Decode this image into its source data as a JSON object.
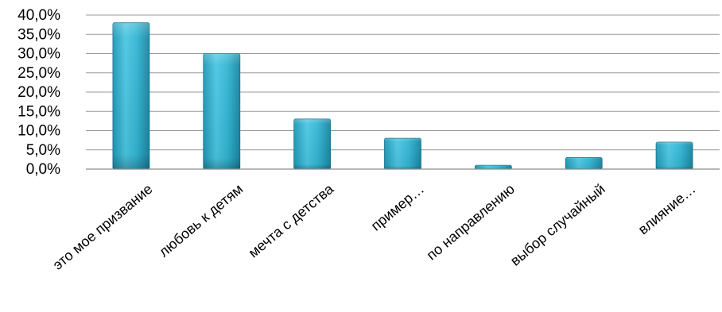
{
  "chart_data": {
    "type": "bar",
    "title": "",
    "xlabel": "",
    "ylabel": "",
    "categories": [
      "это мое призвание",
      "любовь к детям",
      "мечта с детства",
      "пример…",
      "по направлению",
      "выбор случайный",
      "влияние…"
    ],
    "values": [
      38.0,
      30.0,
      13.0,
      8.0,
      1.0,
      3.0,
      7.0
    ],
    "ylim": [
      0,
      40
    ],
    "y_ticks": [
      0,
      5,
      10,
      15,
      20,
      25,
      30,
      35,
      40
    ],
    "y_tick_labels": [
      "0,0%",
      "5,0%",
      "10,0%",
      "15,0%",
      "20,0%",
      "25,0%",
      "30,0%",
      "35,0%",
      "40,0%"
    ],
    "value_unit": "percent",
    "grid": true,
    "legend": "none",
    "colors": {
      "bar_top": "#5bd0ea",
      "bar_mid": "#2fb3d1",
      "bar_bottom": "#1a86a2",
      "bar_edge": "#16718a",
      "gridline": "#9a9a9a",
      "axis": "#8c8c8c"
    }
  }
}
